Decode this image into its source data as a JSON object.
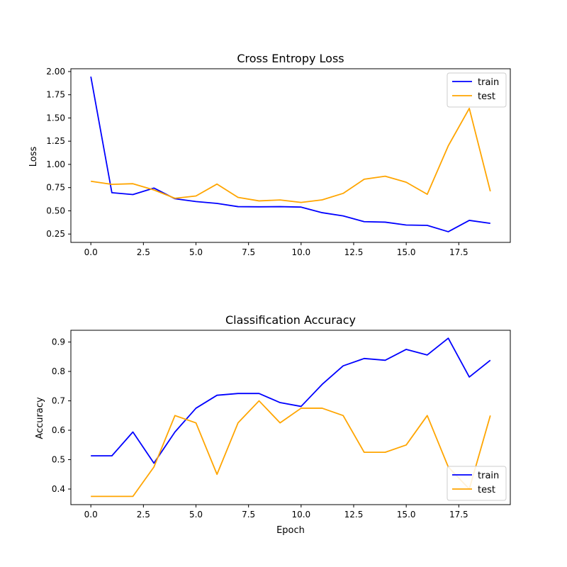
{
  "chart_data": [
    {
      "type": "line",
      "title": "Cross Entropy Loss",
      "xlabel": "",
      "ylabel": "Loss",
      "xlim": [
        -0.95,
        19.95
      ],
      "ylim": [
        0.16,
        2.03
      ],
      "xticks": [
        0.0,
        2.5,
        5.0,
        7.5,
        10.0,
        12.5,
        15.0,
        17.5
      ],
      "xtick_labels": [
        "0.0",
        "2.5",
        "5.0",
        "7.5",
        "10.0",
        "12.5",
        "15.0",
        "17.5"
      ],
      "yticks": [
        0.25,
        0.5,
        0.75,
        1.0,
        1.25,
        1.5,
        1.75,
        2.0
      ],
      "ytick_labels": [
        "0.25",
        "0.50",
        "0.75",
        "1.00",
        "1.25",
        "1.50",
        "1.75",
        "2.00"
      ],
      "grid": false,
      "legend": "upper-right",
      "x": [
        0,
        1,
        2,
        3,
        4,
        5,
        6,
        7,
        8,
        9,
        10,
        11,
        12,
        13,
        14,
        15,
        16,
        17,
        18,
        19
      ],
      "series": [
        {
          "name": "train",
          "color": "#0000ff",
          "values": [
            1.945,
            0.695,
            0.675,
            0.745,
            0.63,
            0.6,
            0.58,
            0.545,
            0.543,
            0.545,
            0.54,
            0.48,
            0.445,
            0.383,
            0.378,
            0.347,
            0.343,
            0.275,
            0.397,
            0.365
          ]
        },
        {
          "name": "test",
          "color": "#ffa500",
          "values": [
            0.818,
            0.785,
            0.792,
            0.725,
            0.635,
            0.66,
            0.788,
            0.645,
            0.607,
            0.617,
            0.59,
            0.618,
            0.688,
            0.84,
            0.873,
            0.808,
            0.678,
            1.2,
            1.603,
            0.71
          ]
        }
      ]
    },
    {
      "type": "line",
      "title": "Classification Accuracy",
      "xlabel": "Epoch",
      "ylabel": "Accuracy",
      "xlim": [
        -0.95,
        19.95
      ],
      "ylim": [
        0.347,
        0.94
      ],
      "xticks": [
        0.0,
        2.5,
        5.0,
        7.5,
        10.0,
        12.5,
        15.0,
        17.5
      ],
      "xtick_labels": [
        "0.0",
        "2.5",
        "5.0",
        "7.5",
        "10.0",
        "12.5",
        "15.0",
        "17.5"
      ],
      "yticks": [
        0.4,
        0.5,
        0.6,
        0.7,
        0.8,
        0.9
      ],
      "ytick_labels": [
        "0.4",
        "0.5",
        "0.6",
        "0.7",
        "0.8",
        "0.9"
      ],
      "grid": false,
      "legend": "lower-right",
      "x": [
        0,
        1,
        2,
        3,
        4,
        5,
        6,
        7,
        8,
        9,
        10,
        11,
        12,
        13,
        14,
        15,
        16,
        17,
        18,
        19
      ],
      "series": [
        {
          "name": "train",
          "color": "#0000ff",
          "values": [
            0.513,
            0.513,
            0.594,
            0.488,
            0.594,
            0.675,
            0.719,
            0.725,
            0.725,
            0.694,
            0.681,
            0.756,
            0.819,
            0.844,
            0.838,
            0.875,
            0.856,
            0.913,
            0.781,
            0.838
          ]
        },
        {
          "name": "test",
          "color": "#ffa500",
          "values": [
            0.375,
            0.375,
            0.375,
            0.475,
            0.65,
            0.625,
            0.45,
            0.625,
            0.7,
            0.625,
            0.675,
            0.675,
            0.65,
            0.525,
            0.525,
            0.55,
            0.65,
            0.475,
            0.4,
            0.65
          ]
        }
      ]
    }
  ]
}
